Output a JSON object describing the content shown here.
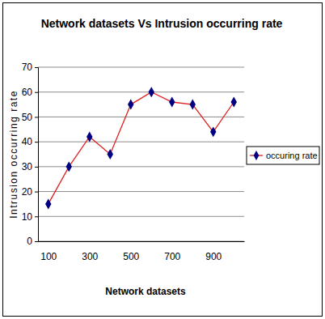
{
  "chart_data": {
    "type": "line",
    "title": "Network datasets Vs Intrusion occurring rate",
    "x_label": "Network datasets",
    "y_label": "Intrusion occurring rate",
    "categories": [
      "100",
      null,
      "300",
      null,
      "500",
      null,
      "700",
      null,
      "900",
      null
    ],
    "series": [
      {
        "name": "occuring rate",
        "color": "#e02020",
        "marker": "diamond",
        "line_style": "solid",
        "values": [
          15,
          30,
          42,
          35,
          55,
          60,
          56,
          55,
          44,
          56
        ]
      }
    ],
    "ylim": [
      0,
      70
    ],
    "yticks": [
      0,
      10,
      20,
      30,
      40,
      50,
      60,
      70
    ],
    "grid": true,
    "legend": "right"
  }
}
